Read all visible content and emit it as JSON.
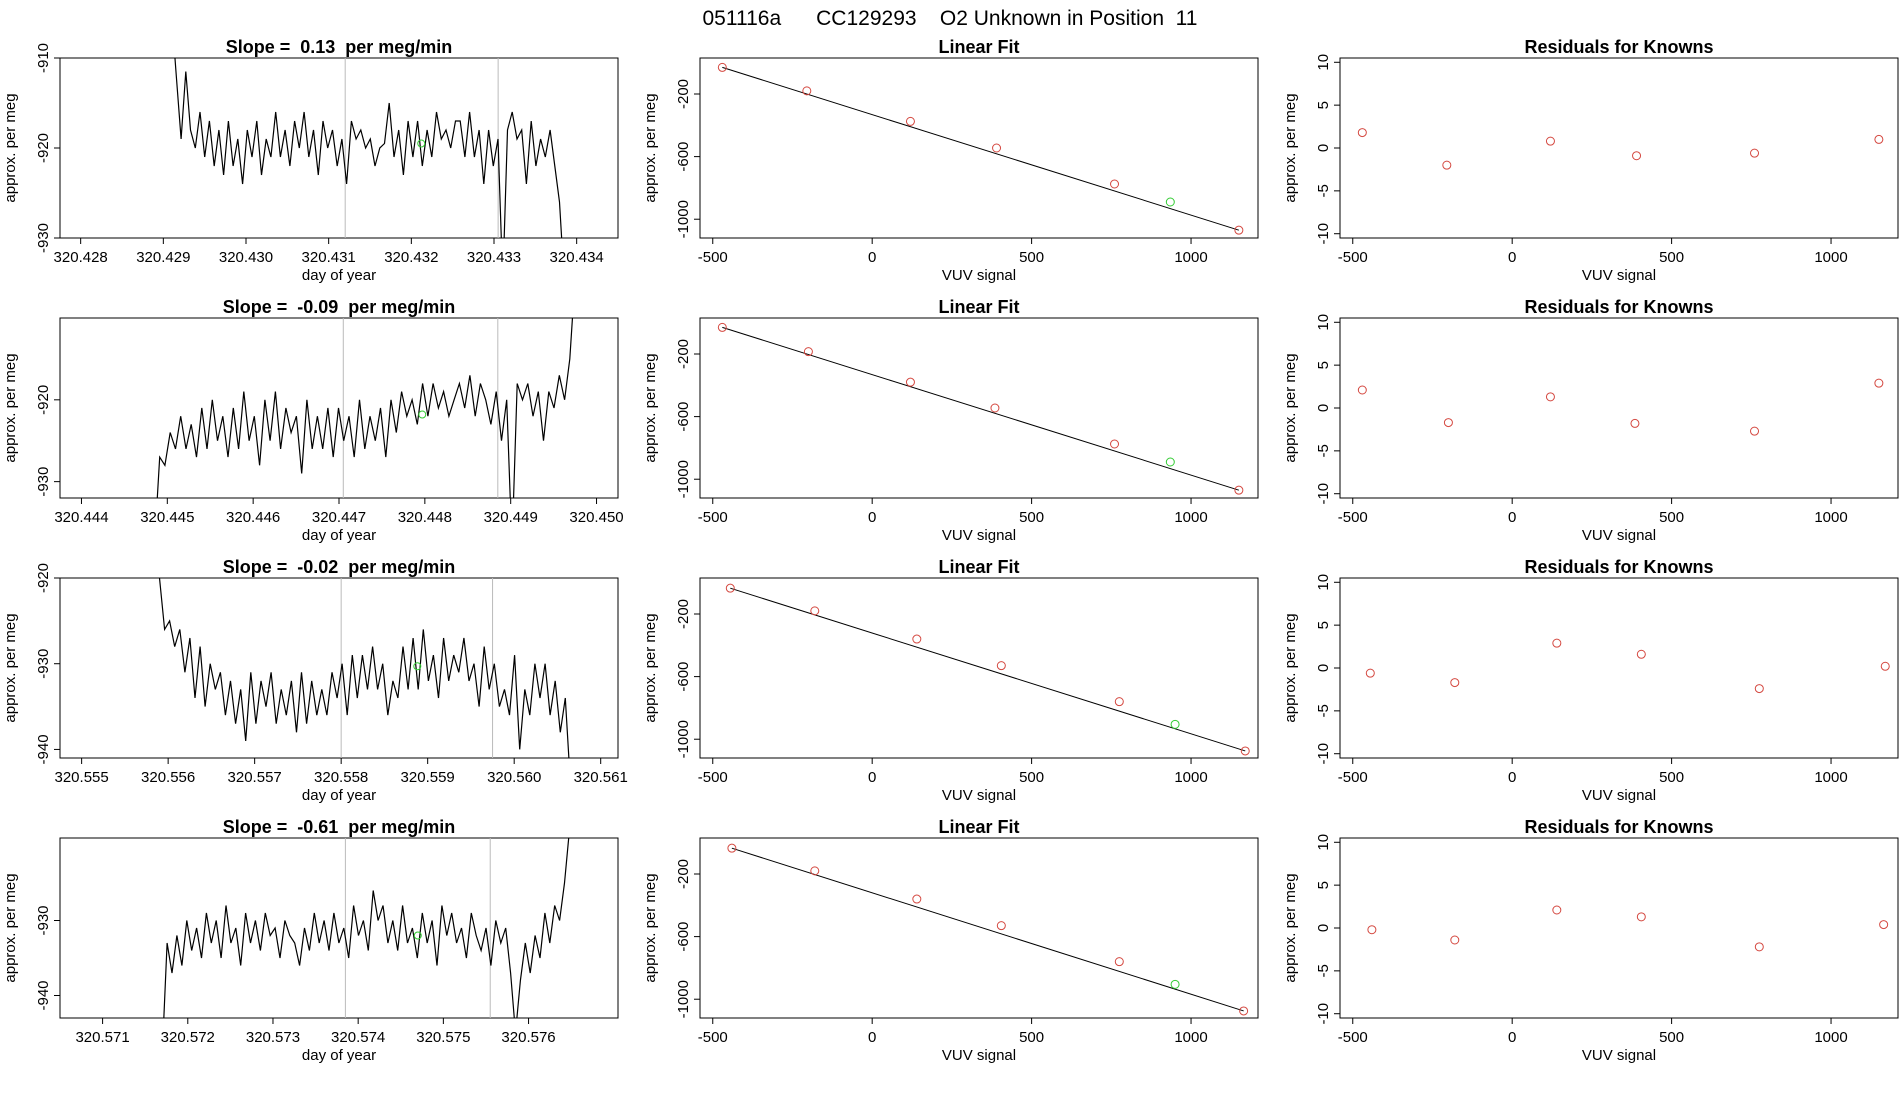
{
  "header": {
    "title": "051116a      CC129293    O2 Unknown in Position  11"
  },
  "colors": {
    "trace": "#000000",
    "known_point": "#d4473f",
    "unknown_point": "#33cc33",
    "gridline": "#bbbbbb",
    "fit_line": "#000000"
  },
  "chart_data": [
    {
      "type": "line",
      "row": 0,
      "col": 0,
      "title": "Slope =  0.13  per meg/min",
      "xlabel": "day of year",
      "ylabel": "approx. per meg",
      "xlim": [
        320.42775,
        320.4345
      ],
      "ylim": [
        -930,
        -910
      ],
      "xticks": [
        "320.428",
        "320.429",
        "320.430",
        "320.431",
        "320.432",
        "320.433",
        "320.434"
      ],
      "yticks": [
        "-910",
        "-920",
        "-930"
      ],
      "vlines": [
        320.4312,
        320.43305
      ],
      "x_range": [
        320.4291,
        320.43385
      ],
      "series": [
        {
          "y": [
            -905,
            -912,
            -919,
            -911.5,
            -918,
            -920,
            -916,
            -921,
            -917,
            -922,
            -918,
            -923,
            -917,
            -922,
            -919,
            -924,
            -918,
            -921,
            -917,
            -923,
            -919,
            -921,
            -916,
            -921,
            -918,
            -922,
            -917,
            -920,
            -916,
            -921,
            -918,
            -923,
            -917,
            -920,
            -918,
            -922,
            -919,
            -924,
            -917,
            -919,
            -918,
            -920,
            -919,
            -922,
            -920,
            -919.5,
            -915,
            -921,
            -918,
            -923,
            -917,
            -921,
            -917,
            -922,
            -918,
            -921,
            -916,
            -919,
            -918,
            -920,
            -917,
            -917,
            -921,
            -916,
            -921,
            -918,
            -924,
            -918,
            -922,
            -919,
            -935,
            -918,
            -916,
            -919,
            -918,
            -924,
            -917,
            -922,
            -919,
            -921,
            -918,
            -922,
            -926,
            -935
          ]
        }
      ],
      "marker": {
        "x": 320.43212,
        "y": -919.5
      }
    },
    {
      "type": "scatter",
      "row": 0,
      "col": 1,
      "title": "Linear Fit",
      "xlabel": "VUV signal",
      "ylabel": "approx. per meg",
      "xlim": [
        -540,
        1210
      ],
      "ylim": [
        -1120,
        30
      ],
      "xticks": [
        -500,
        0,
        500,
        1000
      ],
      "yticks": [
        -200,
        -600,
        -1000
      ],
      "fit": {
        "x": [
          -470,
          1150
        ],
        "y": [
          -30,
          -1070
        ]
      },
      "known": [
        [
          -470,
          -30
        ],
        [
          -205,
          -180
        ],
        [
          120,
          -375
        ],
        [
          390,
          -545
        ],
        [
          760,
          -775
        ],
        [
          1150,
          -1070
        ]
      ],
      "unknown": [
        [
          935,
          -890
        ]
      ]
    },
    {
      "type": "scatter",
      "row": 0,
      "col": 2,
      "title": "Residuals for Knowns",
      "xlabel": "VUV signal",
      "ylabel": "approx. per meg",
      "xlim": [
        -540,
        1210
      ],
      "ylim": [
        -10.5,
        10.5
      ],
      "xticks": [
        -500,
        0,
        500,
        1000
      ],
      "yticks": [
        10,
        5,
        0,
        -5,
        -10
      ],
      "known": [
        [
          -470,
          1.8
        ],
        [
          -205,
          -2
        ],
        [
          120,
          0.8
        ],
        [
          390,
          -0.9
        ],
        [
          760,
          -0.6
        ],
        [
          1150,
          1
        ]
      ]
    },
    {
      "type": "line",
      "row": 1,
      "col": 0,
      "title": "Slope =  -0.09  per meg/min",
      "xlabel": "day of year",
      "ylabel": "approx. per meg",
      "xlim": [
        320.44375,
        320.45025
      ],
      "ylim": [
        -932,
        -910
      ],
      "xticks": [
        "320.444",
        "320.445",
        "320.446",
        "320.447",
        "320.448",
        "320.449",
        "320.450"
      ],
      "yticks": [
        "-920",
        "-930"
      ],
      "vlines": [
        320.44705,
        320.44885
      ],
      "x_range": [
        320.44485,
        320.44975
      ],
      "series": [
        {
          "y": [
            -938,
            -927,
            -928,
            -924,
            -926,
            -922,
            -926,
            -923,
            -927,
            -921,
            -926,
            -920,
            -925,
            -922,
            -927,
            -921,
            -926,
            -919,
            -925,
            -922,
            -928,
            -920,
            -925,
            -919,
            -926,
            -921,
            -924,
            -922,
            -929,
            -920,
            -926,
            -922,
            -926,
            -921,
            -927,
            -921,
            -925,
            -922,
            -927,
            -920,
            -926,
            -922,
            -925,
            -921,
            -927,
            -920,
            -924,
            -919,
            -922,
            -920,
            -923,
            -918,
            -922,
            -918,
            -921,
            -919,
            -922,
            -920,
            -918,
            -921,
            -917,
            -922,
            -918,
            -920,
            -923,
            -919,
            -925,
            -920,
            -938,
            -918,
            -920,
            -918,
            -922,
            -919,
            -925,
            -919,
            -921,
            -917,
            -920,
            -915,
            -905
          ]
        }
      ],
      "marker": {
        "x": 320.44797,
        "y": -921.8
      }
    },
    {
      "type": "scatter",
      "row": 1,
      "col": 1,
      "title": "Linear Fit",
      "xlabel": "VUV signal",
      "ylabel": "approx. per meg",
      "xlim": [
        -540,
        1210
      ],
      "ylim": [
        -1120,
        30
      ],
      "xticks": [
        -500,
        0,
        500,
        1000
      ],
      "yticks": [
        -200,
        -600,
        -1000
      ],
      "fit": {
        "x": [
          -470,
          1150
        ],
        "y": [
          -30,
          -1070
        ]
      },
      "known": [
        [
          -470,
          -30
        ],
        [
          -200,
          -185
        ],
        [
          120,
          -380
        ],
        [
          385,
          -545
        ],
        [
          760,
          -775
        ],
        [
          1150,
          -1070
        ]
      ],
      "unknown": [
        [
          935,
          -890
        ]
      ]
    },
    {
      "type": "scatter",
      "row": 1,
      "col": 2,
      "title": "Residuals for Knowns",
      "xlabel": "VUV signal",
      "ylabel": "approx. per meg",
      "xlim": [
        -540,
        1210
      ],
      "ylim": [
        -10.5,
        10.5
      ],
      "xticks": [
        -500,
        0,
        500,
        1000
      ],
      "yticks": [
        10,
        5,
        0,
        -5,
        -10
      ],
      "known": [
        [
          -470,
          2.1
        ],
        [
          -200,
          -1.7
        ],
        [
          120,
          1.3
        ],
        [
          385,
          -1.8
        ],
        [
          760,
          -2.7
        ],
        [
          1150,
          2.9
        ]
      ]
    },
    {
      "type": "line",
      "row": 2,
      "col": 0,
      "title": "Slope =  -0.02  per meg/min",
      "xlabel": "day of year",
      "ylabel": "approx. per meg",
      "xlim": [
        320.55475,
        320.5612
      ],
      "ylim": [
        -941,
        -920
      ],
      "xticks": [
        "320.555",
        "320.556",
        "320.557",
        "320.558",
        "320.559",
        "320.560",
        "320.561"
      ],
      "yticks": [
        "-920",
        "-930",
        "-940"
      ],
      "vlines": [
        320.558,
        320.55975
      ],
      "x_range": [
        320.5559,
        320.56065
      ],
      "series": [
        {
          "y": [
            -920,
            -926,
            -925,
            -928,
            -926,
            -931,
            -927,
            -934,
            -928,
            -935,
            -930,
            -933,
            -931,
            -936,
            -932,
            -937,
            -933,
            -939,
            -931,
            -937,
            -932,
            -935,
            -931,
            -937,
            -933,
            -936,
            -932,
            -938,
            -931,
            -937,
            -932,
            -936,
            -933,
            -936,
            -931,
            -934,
            -930,
            -936,
            -929,
            -934,
            -929,
            -933,
            -928,
            -933,
            -930,
            -936,
            -932,
            -934,
            -928,
            -933,
            -927,
            -933,
            -926,
            -932,
            -929,
            -934,
            -927,
            -932,
            -929,
            -931,
            -927,
            -932,
            -930,
            -935,
            -928,
            -933,
            -930,
            -935,
            -933,
            -936,
            -929,
            -940,
            -933,
            -936,
            -930,
            -934,
            -930,
            -936,
            -932,
            -938,
            -934,
            -944
          ]
        }
      ],
      "marker": {
        "x": 320.55888,
        "y": -930.3
      }
    },
    {
      "type": "scatter",
      "row": 2,
      "col": 1,
      "title": "Linear Fit",
      "xlabel": "VUV signal",
      "ylabel": "approx. per meg",
      "xlim": [
        -540,
        1210
      ],
      "ylim": [
        -1120,
        30
      ],
      "xticks": [
        -500,
        0,
        500,
        1000
      ],
      "yticks": [
        -200,
        -600,
        -1000
      ],
      "fit": {
        "x": [
          -445,
          1170
        ],
        "y": [
          -35,
          -1075
        ]
      },
      "known": [
        [
          -445,
          -35
        ],
        [
          -180,
          -180
        ],
        [
          140,
          -360
        ],
        [
          405,
          -530
        ],
        [
          775,
          -760
        ],
        [
          1170,
          -1075
        ]
      ],
      "unknown": [
        [
          950,
          -905
        ]
      ]
    },
    {
      "type": "scatter",
      "row": 2,
      "col": 2,
      "title": "Residuals for Knowns",
      "xlabel": "VUV signal",
      "ylabel": "approx. per meg",
      "xlim": [
        -540,
        1210
      ],
      "ylim": [
        -10.5,
        10.5
      ],
      "xticks": [
        -500,
        0,
        500,
        1000
      ],
      "yticks": [
        10,
        5,
        0,
        -5,
        -10
      ],
      "known": [
        [
          -445,
          -0.6
        ],
        [
          -180,
          -1.7
        ],
        [
          140,
          2.9
        ],
        [
          405,
          1.6
        ],
        [
          775,
          -2.4
        ],
        [
          1170,
          0.2
        ]
      ]
    },
    {
      "type": "line",
      "row": 3,
      "col": 0,
      "title": "Slope =  -0.61  per meg/min",
      "xlabel": "day of year",
      "ylabel": "approx. per meg",
      "xlim": [
        320.5705,
        320.57705
      ],
      "ylim": [
        -943,
        -919
      ],
      "xticks": [
        "320.571",
        "320.572",
        "320.573",
        "320.574",
        "320.575",
        "320.576"
      ],
      "yticks": [
        "-930",
        "-940"
      ],
      "vlines": [
        320.57385,
        320.57555
      ],
      "x_range": [
        320.5717,
        320.57648
      ],
      "series": [
        {
          "y": [
            -948,
            -933,
            -937,
            -932,
            -936,
            -930,
            -934,
            -931,
            -935,
            -929,
            -933,
            -930,
            -935,
            -928,
            -933,
            -931,
            -936,
            -929,
            -933,
            -930,
            -934,
            -929,
            -932,
            -931,
            -935,
            -930,
            -932,
            -933,
            -936,
            -931,
            -934,
            -929,
            -933,
            -930,
            -934,
            -929,
            -933,
            -931,
            -935,
            -928,
            -932,
            -930,
            -934,
            -926,
            -930,
            -928,
            -933,
            -930,
            -934,
            -928,
            -933,
            -931,
            -935,
            -929,
            -933,
            -930,
            -936,
            -928,
            -932,
            -929,
            -933,
            -931,
            -935,
            -929,
            -932,
            -934,
            -931,
            -936,
            -930,
            -933,
            -931,
            -937,
            -945,
            -938,
            -933,
            -937,
            -932,
            -935,
            -929,
            -933,
            -928,
            -930,
            -925,
            -918
          ]
        }
      ],
      "marker": {
        "x": 320.5747,
        "y": -932
      }
    },
    {
      "type": "scatter",
      "row": 3,
      "col": 1,
      "title": "Linear Fit",
      "xlabel": "VUV signal",
      "ylabel": "approx. per meg",
      "xlim": [
        -540,
        1210
      ],
      "ylim": [
        -1120,
        30
      ],
      "xticks": [
        -500,
        0,
        500,
        1000
      ],
      "yticks": [
        -200,
        -600,
        -1000
      ],
      "fit": {
        "x": [
          -440,
          1165
        ],
        "y": [
          -35,
          -1075
        ]
      },
      "known": [
        [
          -440,
          -35
        ],
        [
          -180,
          -180
        ],
        [
          140,
          -360
        ],
        [
          405,
          -530
        ],
        [
          775,
          -760
        ],
        [
          1165,
          -1075
        ]
      ],
      "unknown": [
        [
          950,
          -905
        ]
      ]
    },
    {
      "type": "scatter",
      "row": 3,
      "col": 2,
      "title": "Residuals for Knowns",
      "xlabel": "VUV signal",
      "ylabel": "approx. per meg",
      "xlim": [
        -540,
        1210
      ],
      "ylim": [
        -10.5,
        10.5
      ],
      "xticks": [
        -500,
        0,
        500,
        1000
      ],
      "yticks": [
        10,
        5,
        0,
        -5,
        -10
      ],
      "known": [
        [
          -440,
          -0.2
        ],
        [
          -180,
          -1.4
        ],
        [
          140,
          2.1
        ],
        [
          405,
          1.3
        ],
        [
          775,
          -2.2
        ],
        [
          1165,
          0.4
        ]
      ]
    }
  ]
}
